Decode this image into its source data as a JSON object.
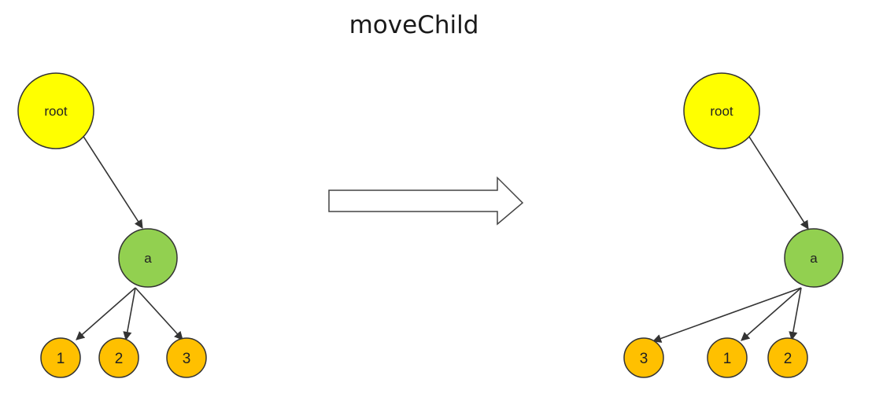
{
  "title": "moveChild",
  "colors": {
    "root": "#ffff00",
    "a": "#92d050",
    "leaf": "#ffc000",
    "stroke": "#333333"
  },
  "before": {
    "root_label": "root",
    "a_label": "a",
    "children": [
      "1",
      "2",
      "3"
    ]
  },
  "after": {
    "root_label": "root",
    "a_label": "a",
    "children": [
      "3",
      "1",
      "2"
    ]
  }
}
